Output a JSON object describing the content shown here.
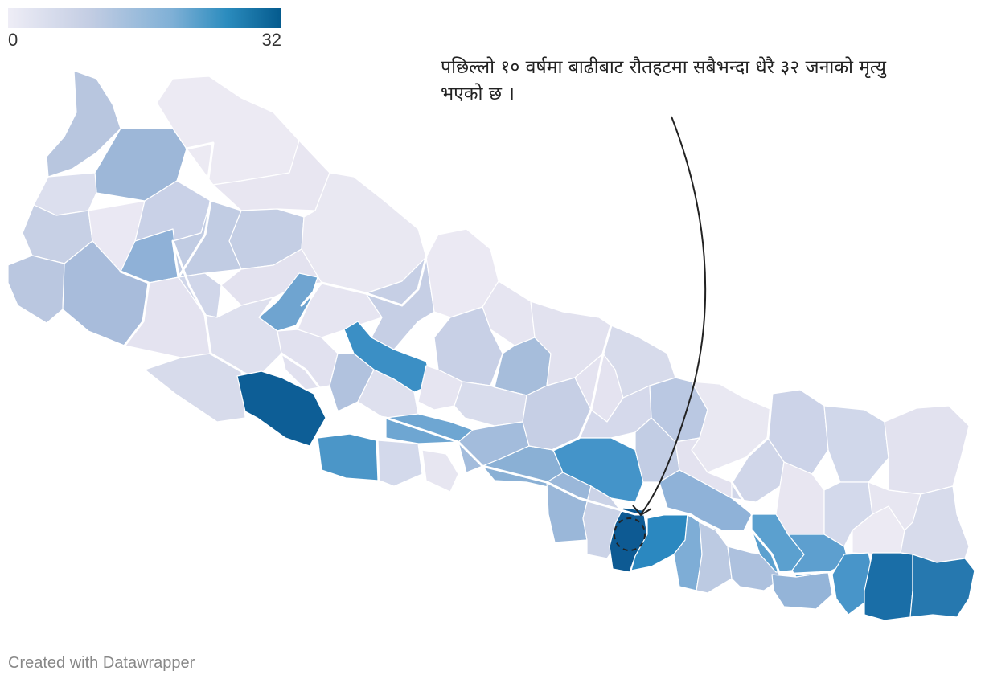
{
  "legend": {
    "min_label": "0",
    "max_label": "32",
    "min_value": 0,
    "max_value": 32,
    "colors": [
      "#eeedf6",
      "#c3cde3",
      "#7fb0d6",
      "#2b8cbe",
      "#045a8d"
    ]
  },
  "annotation": {
    "text": "पछिल्लो १० वर्षमा बाढीबाट रौतहटमा सबैभन्दा धेरै ३२ जनाको मृत्यु भएको छ ।"
  },
  "credit": "Created with Datawrapper",
  "colors": {
    "background": "#ffffff",
    "province_border": "#ffffff",
    "annotation_arrow": "#222222"
  }
}
